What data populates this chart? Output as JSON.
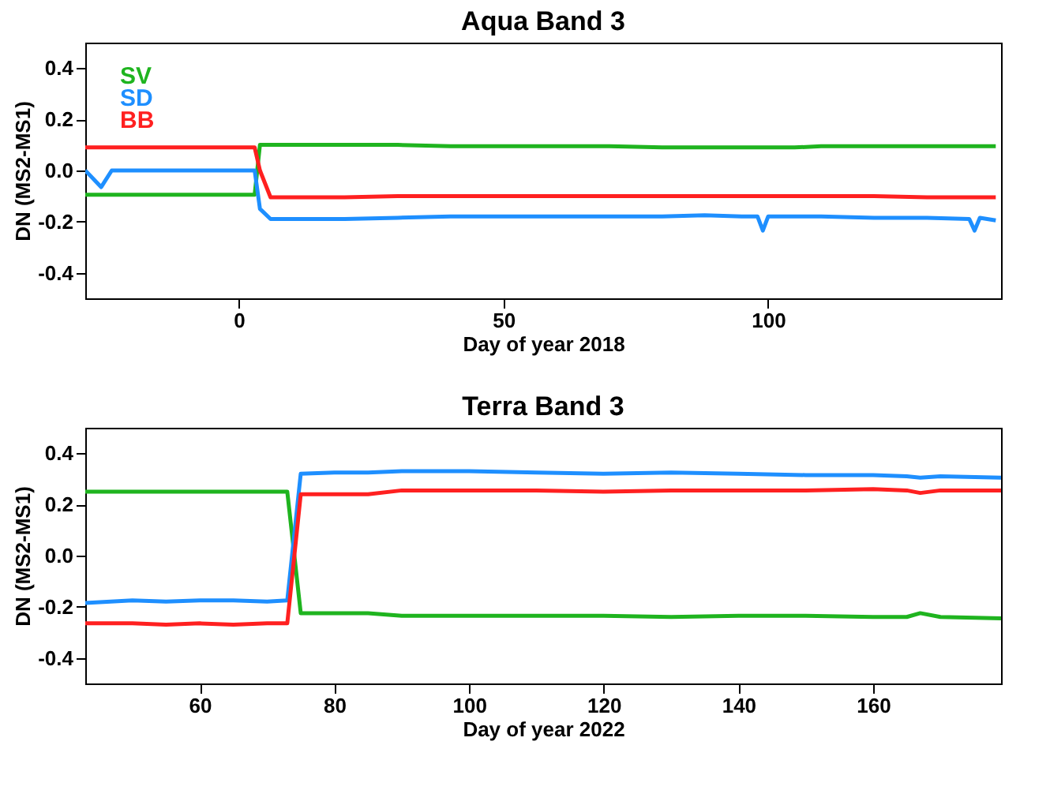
{
  "chart_data": [
    {
      "type": "line",
      "title": "Aqua Band 3",
      "xlabel": "Day of year 2018",
      "ylabel": "DN (MS2-MS1)",
      "xlim": [
        -29,
        144
      ],
      "ylim": [
        -0.5,
        0.5
      ],
      "xticks": [
        0,
        50,
        100
      ],
      "yticks": [
        -0.4,
        -0.2,
        {
          "value": 0,
          "label": "0.0"
        },
        0.2,
        0.4
      ],
      "grid": false,
      "legend": "top left",
      "marker": "none",
      "line_style": "solid",
      "x": [
        -29,
        -26,
        -24,
        -20,
        -15,
        -10,
        -5,
        0,
        3,
        4,
        6,
        10,
        20,
        30,
        40,
        50,
        60,
        70,
        80,
        88,
        95,
        98,
        99,
        100,
        105,
        110,
        120,
        130,
        138,
        139,
        140,
        143
      ],
      "series": [
        {
          "name": "SV",
          "color": "#1fb41f",
          "values": [
            -0.095,
            -0.095,
            -0.095,
            -0.095,
            -0.095,
            -0.095,
            -0.095,
            -0.095,
            -0.095,
            0.1,
            0.1,
            0.1,
            0.1,
            0.1,
            0.095,
            0.095,
            0.095,
            0.095,
            0.09,
            0.09,
            0.09,
            0.09,
            0.09,
            0.09,
            0.09,
            0.095,
            0.095,
            0.095,
            0.095,
            0.095,
            0.095,
            0.095
          ]
        },
        {
          "name": "SD",
          "color": "#1e8fff",
          "values": [
            0.0,
            -0.065,
            0.0,
            0.0,
            0.0,
            0.0,
            0.0,
            0.0,
            0.0,
            -0.15,
            -0.19,
            -0.19,
            -0.19,
            -0.185,
            -0.18,
            -0.18,
            -0.18,
            -0.18,
            -0.18,
            -0.175,
            -0.18,
            -0.18,
            -0.235,
            -0.18,
            -0.18,
            -0.18,
            -0.185,
            -0.185,
            -0.19,
            -0.235,
            -0.185,
            -0.195
          ]
        },
        {
          "name": "BB",
          "color": "#ff2020",
          "values": [
            0.09,
            0.09,
            0.09,
            0.09,
            0.09,
            0.09,
            0.09,
            0.09,
            0.09,
            0.0,
            -0.105,
            -0.105,
            -0.105,
            -0.1,
            -0.1,
            -0.1,
            -0.1,
            -0.1,
            -0.1,
            -0.1,
            -0.1,
            -0.1,
            -0.1,
            -0.1,
            -0.1,
            -0.1,
            -0.1,
            -0.105,
            -0.105,
            -0.105,
            -0.105,
            -0.105
          ]
        }
      ]
    },
    {
      "type": "line",
      "title": "Terra Band 3",
      "xlabel": "Day of year 2022",
      "ylabel": "DN (MS2-MS1)",
      "xlim": [
        43,
        179
      ],
      "ylim": [
        -0.5,
        0.5
      ],
      "xticks": [
        60,
        80,
        100,
        120,
        140,
        160
      ],
      "yticks": [
        -0.4,
        -0.2,
        {
          "value": 0,
          "label": "0.0"
        },
        0.2,
        0.4
      ],
      "grid": false,
      "legend": false,
      "marker": "none",
      "line_style": "solid",
      "x": [
        43,
        50,
        55,
        60,
        65,
        70,
        73,
        75,
        80,
        85,
        90,
        95,
        100,
        110,
        120,
        130,
        140,
        150,
        160,
        165,
        167,
        170,
        179
      ],
      "series": [
        {
          "color": "#1fb41f",
          "values": [
            0.25,
            0.25,
            0.25,
            0.25,
            0.25,
            0.25,
            0.25,
            -0.225,
            -0.225,
            -0.225,
            -0.235,
            -0.235,
            -0.235,
            -0.235,
            -0.235,
            -0.24,
            -0.235,
            -0.235,
            -0.24,
            -0.24,
            -0.225,
            -0.24,
            -0.245
          ]
        },
        {
          "color": "#1e8fff",
          "values": [
            -0.185,
            -0.175,
            -0.18,
            -0.175,
            -0.175,
            -0.18,
            -0.175,
            0.32,
            0.325,
            0.325,
            0.33,
            0.33,
            0.33,
            0.325,
            0.32,
            0.325,
            0.32,
            0.315,
            0.315,
            0.31,
            0.305,
            0.31,
            0.305
          ]
        },
        {
          "color": "#ff2020",
          "values": [
            -0.265,
            -0.265,
            -0.27,
            -0.265,
            -0.27,
            -0.265,
            -0.265,
            0.24,
            0.24,
            0.24,
            0.255,
            0.255,
            0.255,
            0.255,
            0.25,
            0.255,
            0.255,
            0.255,
            0.26,
            0.255,
            0.245,
            0.255,
            0.255
          ]
        }
      ]
    }
  ]
}
